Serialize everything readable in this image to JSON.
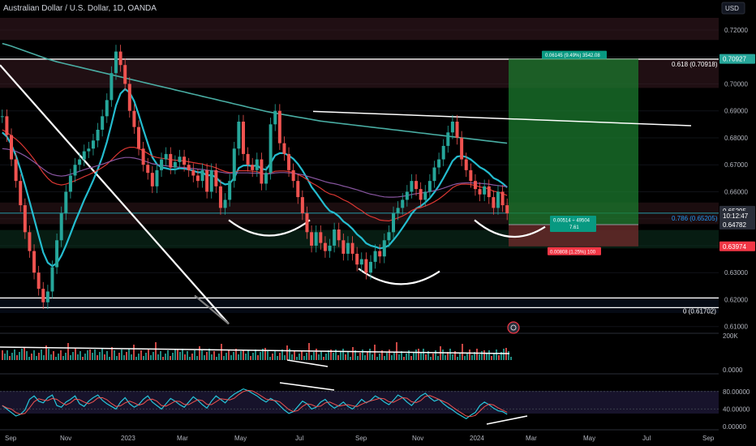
{
  "chart_data": {
    "type": "line",
    "title": "Australian Dollar / U.S. Dollar, 1D, OANDA",
    "currency": "USD",
    "x_ticks": [
      "Sep",
      "Nov",
      "2023",
      "Mar",
      "May",
      "Jul",
      "Sep",
      "Nov",
      "2024",
      "Mar",
      "May",
      "Jul",
      "Sep"
    ],
    "y_ticks": [
      "0.72000",
      "0.71000",
      "0.70000",
      "0.69000",
      "0.68000",
      "0.67000",
      "0.66000",
      "0.65000",
      "0.64000",
      "0.63000",
      "0.62000",
      "0.61000"
    ],
    "ylim": [
      0.6075,
      0.7245
    ],
    "price_badges": [
      {
        "value": "0.70927",
        "color": "#26a69a"
      },
      {
        "value": "0.65295",
        "color": "#2a2e39"
      },
      {
        "value": "10:12:47",
        "color": "#2a2e39"
      },
      {
        "value": "0.64782",
        "color": "#2a2e39"
      },
      {
        "value": "0.63974",
        "color": "#f23645"
      }
    ],
    "fib_labels": [
      {
        "text": "0.618 (0.70918)",
        "value": 0.70918
      },
      {
        "text": "0.786 (0.65205)",
        "value": 0.65205
      },
      {
        "text": "0 (0.61702)",
        "value": 0.61702
      }
    ],
    "position_tool": {
      "entry": 0.6478,
      "target": 0.70927,
      "stop": 0.63974,
      "target_label": "0.06145 (9.49%) 3542.08",
      "stop_label": "0.00808 (1.25%) 100",
      "mid_label_1": "0.00514 ÷ 49504",
      "mid_label_2": "7.61"
    },
    "price_series": [
      [
        0,
        0.688
      ],
      [
        1,
        0.681
      ],
      [
        2,
        0.672
      ],
      [
        3,
        0.664
      ],
      [
        4,
        0.655
      ],
      [
        5,
        0.645
      ],
      [
        6,
        0.638
      ],
      [
        7,
        0.63
      ],
      [
        8,
        0.624
      ],
      [
        9,
        0.619
      ],
      [
        10,
        0.623
      ],
      [
        11,
        0.632
      ],
      [
        12,
        0.642
      ],
      [
        13,
        0.652
      ],
      [
        14,
        0.66
      ],
      [
        15,
        0.666
      ],
      [
        16,
        0.67
      ],
      [
        17,
        0.672
      ],
      [
        18,
        0.675
      ],
      [
        19,
        0.676
      ],
      [
        20,
        0.679
      ],
      [
        21,
        0.683
      ],
      [
        22,
        0.688
      ],
      [
        23,
        0.694
      ],
      [
        24,
        0.704
      ],
      [
        25,
        0.712
      ],
      [
        26,
        0.707
      ],
      [
        27,
        0.7
      ],
      [
        28,
        0.69
      ],
      [
        29,
        0.684
      ],
      [
        30,
        0.676
      ],
      [
        31,
        0.67
      ],
      [
        32,
        0.667
      ],
      [
        33,
        0.662
      ],
      [
        34,
        0.668
      ],
      [
        35,
        0.672
      ],
      [
        36,
        0.674
      ],
      [
        37,
        0.669
      ],
      [
        38,
        0.671
      ],
      [
        39,
        0.673
      ],
      [
        40,
        0.67
      ],
      [
        41,
        0.668
      ],
      [
        42,
        0.666
      ],
      [
        43,
        0.664
      ],
      [
        44,
        0.668
      ],
      [
        45,
        0.66
      ],
      [
        46,
        0.668
      ],
      [
        47,
        0.662
      ],
      [
        48,
        0.654
      ],
      [
        49,
        0.657
      ],
      [
        50,
        0.664
      ],
      [
        51,
        0.676
      ],
      [
        52,
        0.686
      ],
      [
        53,
        0.674
      ],
      [
        54,
        0.67
      ],
      [
        55,
        0.668
      ],
      [
        56,
        0.672
      ],
      [
        57,
        0.663
      ],
      [
        58,
        0.667
      ],
      [
        59,
        0.685
      ],
      [
        60,
        0.69
      ],
      [
        61,
        0.678
      ],
      [
        62,
        0.674
      ],
      [
        63,
        0.668
      ],
      [
        64,
        0.664
      ],
      [
        65,
        0.658
      ],
      [
        66,
        0.652
      ],
      [
        67,
        0.645
      ],
      [
        68,
        0.64
      ],
      [
        69,
        0.645
      ],
      [
        70,
        0.641
      ],
      [
        71,
        0.638
      ],
      [
        72,
        0.64
      ],
      [
        73,
        0.646
      ],
      [
        74,
        0.642
      ],
      [
        75,
        0.637
      ],
      [
        76,
        0.641
      ],
      [
        77,
        0.637
      ],
      [
        78,
        0.633
      ],
      [
        79,
        0.635
      ],
      [
        80,
        0.63
      ],
      [
        81,
        0.634
      ],
      [
        82,
        0.638
      ],
      [
        83,
        0.636
      ],
      [
        84,
        0.642
      ],
      [
        85,
        0.645
      ],
      [
        86,
        0.652
      ],
      [
        87,
        0.654
      ],
      [
        88,
        0.657
      ],
      [
        89,
        0.66
      ],
      [
        90,
        0.664
      ],
      [
        91,
        0.661
      ],
      [
        92,
        0.657
      ],
      [
        93,
        0.66
      ],
      [
        94,
        0.664
      ],
      [
        95,
        0.669
      ],
      [
        96,
        0.672
      ],
      [
        97,
        0.677
      ],
      [
        98,
        0.682
      ],
      [
        99,
        0.686
      ],
      [
        100,
        0.68
      ],
      [
        101,
        0.672
      ],
      [
        102,
        0.668
      ],
      [
        103,
        0.664
      ],
      [
        104,
        0.661
      ],
      [
        105,
        0.659
      ],
      [
        106,
        0.662
      ],
      [
        107,
        0.658
      ],
      [
        108,
        0.654
      ],
      [
        109,
        0.66
      ],
      [
        110,
        0.655
      ],
      [
        111,
        0.652
      ]
    ],
    "series": [
      {
        "values": [
          0.682,
          0.6805,
          0.6775,
          0.6734,
          0.6683,
          0.6625,
          0.6564,
          0.65,
          0.6437,
          0.6375,
          0.6337,
          0.6324,
          0.6335,
          0.6363,
          0.6401,
          0.6444,
          0.6488,
          0.6528,
          0.6569,
          0.6605,
          0.6642,
          0.6684,
          0.673,
          0.6785,
          0.6851,
          0.692,
          0.6964,
          0.6981,
          0.6968,
          0.6936,
          0.6886,
          0.6831,
          0.6779,
          0.6728,
          0.6702,
          0.669,
          0.6687,
          0.6683,
          0.6683,
          0.6687,
          0.6686,
          0.6683,
          0.6678,
          0.6672,
          0.6672,
          0.666,
          0.6662,
          0.6653,
          0.6636,
          0.6627,
          0.663,
          0.6652,
          0.6688,
          0.6697,
          0.6698,
          0.6695,
          0.6698,
          0.6685,
          0.6682,
          0.6706,
          0.6735,
          0.6743,
          0.6743,
          0.6734,
          0.6722,
          0.6703,
          0.6679,
          0.665,
          0.6618,
          0.6596,
          0.6572,
          0.6548,
          0.6529,
          0.6522,
          0.6509,
          0.649,
          0.6478,
          0.6462,
          0.6442,
          0.6428,
          0.6409,
          0.64,
          0.6396,
          0.639,
          0.6393,
          0.6401,
          0.6421,
          0.6442,
          0.6466,
          0.6491,
          0.6518,
          0.6538,
          0.6547,
          0.656,
          0.6576,
          0.6598,
          0.6622,
          0.6651,
          0.6682,
          0.6714,
          0.673,
          0.6733,
          0.6729,
          0.672,
          0.6706,
          0.6691,
          0.6682,
          0.6669,
          0.6651,
          0.6643,
          0.6631,
          0.6616
        ],
        "color": "#26c6da"
      },
      {
        "values": [
          0.683,
          0.682,
          0.6808,
          0.6795,
          0.678,
          0.6762,
          0.6742,
          0.672,
          0.6695,
          0.667,
          0.665,
          0.6635,
          0.6628,
          0.6625,
          0.6628,
          0.6634,
          0.6641,
          0.6648,
          0.6656,
          0.6663,
          0.6671,
          0.668,
          0.669,
          0.6702,
          0.6718,
          0.6735,
          0.675,
          0.676,
          0.6765,
          0.6765,
          0.676,
          0.6752,
          0.6742,
          0.6732,
          0.6727,
          0.6724,
          0.6722,
          0.6719,
          0.6717,
          0.6716,
          0.6714,
          0.6711,
          0.6708,
          0.6705,
          0.6703,
          0.6697,
          0.6694,
          0.6689,
          0.6681,
          0.6675,
          0.6671,
          0.6673,
          0.6678,
          0.6678,
          0.6678,
          0.6676,
          0.6675,
          0.6669,
          0.6665,
          0.667,
          0.6676,
          0.6677,
          0.6677,
          0.6675,
          0.6671,
          0.6664,
          0.6656,
          0.6645,
          0.6633,
          0.6624,
          0.6613,
          0.6601,
          0.6592,
          0.6588,
          0.658,
          0.657,
          0.6563,
          0.6552,
          0.654,
          0.653,
          0.6517,
          0.6508,
          0.6503,
          0.6495,
          0.6493,
          0.6492,
          0.6497,
          0.6503,
          0.651,
          0.6519,
          0.653,
          0.6538,
          0.6541,
          0.6547,
          0.6554,
          0.6563,
          0.6573,
          0.6586,
          0.66,
          0.6615,
          0.6624,
          0.6628,
          0.6628,
          0.6627,
          0.6623,
          0.6618,
          0.6615,
          0.661,
          0.6602,
          0.6599,
          0.6593,
          0.6586
        ],
        "color": "#e53935"
      },
      {
        "values": [
          0.676,
          0.6758,
          0.6755,
          0.675,
          0.6742,
          0.6733,
          0.6722,
          0.671,
          0.6697,
          0.6684,
          0.6672,
          0.6664,
          0.666,
          0.6658,
          0.666,
          0.6665,
          0.667,
          0.6676,
          0.6682,
          0.6687,
          0.6692,
          0.6697,
          0.6702,
          0.6708,
          0.6714,
          0.672,
          0.6724,
          0.6727,
          0.6727,
          0.6725,
          0.6721,
          0.6716,
          0.671,
          0.6704,
          0.6701,
          0.6698,
          0.6696,
          0.6694,
          0.6692,
          0.6691,
          0.669,
          0.6688,
          0.6686,
          0.6684,
          0.6683,
          0.668,
          0.6678,
          0.6676,
          0.6673,
          0.667,
          0.6668,
          0.6668,
          0.667,
          0.667,
          0.667,
          0.6669,
          0.6669,
          0.6667,
          0.6665,
          0.6667,
          0.667,
          0.6671,
          0.6671,
          0.667,
          0.6669,
          0.6666,
          0.6663,
          0.6658,
          0.6653,
          0.6648,
          0.6643,
          0.6637,
          0.6633,
          0.663,
          0.6626,
          0.6621,
          0.6617,
          0.6612,
          0.6607,
          0.6602,
          0.6596,
          0.6591,
          0.6588,
          0.6584,
          0.6581,
          0.658,
          0.658,
          0.6581,
          0.6583,
          0.6586,
          0.659,
          0.6593,
          0.6595,
          0.6597,
          0.66,
          0.6604,
          0.6608,
          0.6613,
          0.6619,
          0.6625,
          0.663,
          0.6632,
          0.6633,
          0.6633,
          0.6632,
          0.6631,
          0.663,
          0.6628,
          0.6625,
          0.6623,
          0.6621,
          0.6619
        ],
        "color": "#8e5aa8"
      },
      {
        "values": [
          0.715,
          0.7145,
          0.714,
          0.7134,
          0.7128,
          0.7122,
          0.7116,
          0.711,
          0.7104,
          0.7098,
          0.7092,
          0.7087,
          0.7082,
          0.7078,
          0.7074,
          0.707,
          0.7066,
          0.7062,
          0.7058,
          0.7054,
          0.705,
          0.7046,
          0.7042,
          0.7038,
          0.7034,
          0.703,
          0.7026,
          0.7022,
          0.7018,
          0.7014,
          0.701,
          0.7006,
          0.7002,
          0.6998,
          0.6994,
          0.699,
          0.6986,
          0.6982,
          0.6978,
          0.6974,
          0.697,
          0.6966,
          0.6962,
          0.6958,
          0.6954,
          0.695,
          0.6946,
          0.6942,
          0.6938,
          0.6934,
          0.693,
          0.6926,
          0.6922,
          0.6918,
          0.6914,
          0.691,
          0.6906,
          0.6902,
          0.6898,
          0.6895,
          0.6892,
          0.6889,
          0.6886,
          0.6883,
          0.688,
          0.6877,
          0.6874,
          0.6871,
          0.6868,
          0.6865,
          0.6862,
          0.686,
          0.6858,
          0.6856,
          0.6854,
          0.6852,
          0.685,
          0.6848,
          0.6846,
          0.6844,
          0.6842,
          0.684,
          0.6838,
          0.6836,
          0.6834,
          0.6832,
          0.683,
          0.6828,
          0.6826,
          0.6824,
          0.6822,
          0.682,
          0.6818,
          0.6816,
          0.6814,
          0.6812,
          0.681,
          0.6808,
          0.6806,
          0.6804,
          0.6802,
          0.68,
          0.6798,
          0.6796,
          0.6794,
          0.6792,
          0.679,
          0.6788,
          0.6786,
          0.6784,
          0.6782,
          0.678
        ],
        "color": "#4db6ac"
      }
    ],
    "volume_ticks": [
      "200K",
      "0.0000"
    ],
    "rsi_ticks": [
      "80.00000",
      "40.00000",
      "0.00000"
    ],
    "rsi_values": [
      48,
      40,
      32,
      24,
      28,
      38,
      62,
      70,
      58,
      54,
      66,
      72,
      48,
      44,
      56,
      62,
      70,
      52,
      46,
      58,
      66,
      72,
      60,
      52,
      46,
      40,
      56,
      66,
      52,
      44,
      50,
      62,
      70,
      56,
      48,
      40,
      52,
      64,
      58,
      50,
      44,
      56,
      68,
      60,
      50,
      42,
      58,
      70,
      62,
      54,
      66,
      74,
      80,
      86,
      82,
      76,
      70,
      62,
      56,
      64,
      58,
      48,
      38,
      30,
      34,
      46,
      58,
      52,
      40,
      44,
      56,
      62,
      50,
      42,
      48,
      56,
      46,
      40,
      50,
      62,
      54,
      60,
      70,
      64,
      56,
      50,
      60,
      72,
      66,
      56,
      48,
      60,
      70,
      76,
      66,
      58,
      62,
      52,
      44,
      38,
      30,
      24,
      18,
      26,
      32,
      48,
      56,
      50,
      42,
      36,
      34,
      28
    ]
  }
}
